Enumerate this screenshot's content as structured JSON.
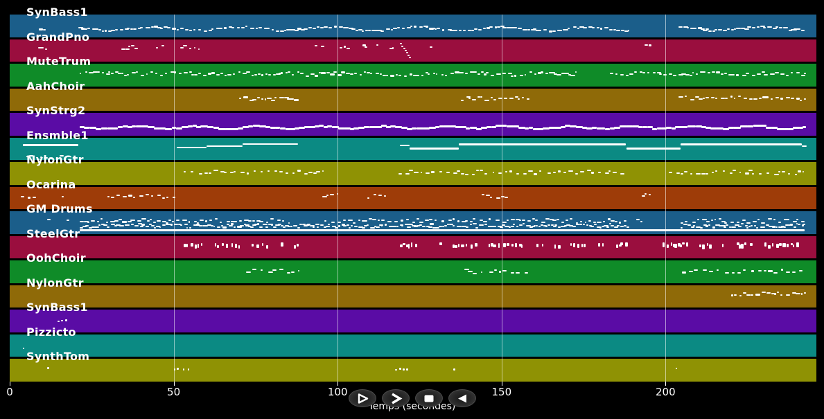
{
  "axis": {
    "title": "Temps (secondes)",
    "unit": "seconds",
    "range": [
      0,
      246
    ],
    "ticks": [
      {
        "value": 0,
        "label": "0"
      },
      {
        "value": 50,
        "label": "50"
      },
      {
        "value": 100,
        "label": "100"
      },
      {
        "value": 150,
        "label": "150"
      },
      {
        "value": 200,
        "label": "200"
      }
    ]
  },
  "controls": {
    "buttons": [
      {
        "name": "play",
        "label": "play",
        "glyph": "play-outline-triangle"
      },
      {
        "name": "fast-forward",
        "label": "fast-forward",
        "glyph": "chevron-right"
      },
      {
        "name": "stop",
        "label": "stop",
        "glyph": "filled-square"
      },
      {
        "name": "rewind",
        "label": "rewind",
        "glyph": "filled-left-triangle"
      }
    ]
  },
  "palette": {
    "background": "#000000",
    "note_color": "#ffffff",
    "gridline_color": "rgba(255,255,255,0.55)",
    "band_colors": [
      "#1b5e8a",
      "#9a0e3e",
      "#0f8b28",
      "#8f6a08",
      "#5a0ca5",
      "#0b8a83",
      "#8f9204",
      "#9e3c08"
    ]
  },
  "chart_data": {
    "type": "midi-piano-roll",
    "xlabel": "Temps (secondes)",
    "x_range": [
      0,
      246
    ],
    "gridlines": [
      50,
      100,
      150,
      200
    ],
    "tracks": [
      {
        "name": "SynBass1",
        "color": "#1b5e8a",
        "rows": [
          {
            "style": "wavy-dashes",
            "lane": 0.6,
            "gap": 5.5,
            "segments": [
              [
                8.8,
                10.5
              ],
              [
                21,
                188.5
              ],
              [
                204,
                242.5
              ]
            ]
          }
        ]
      },
      {
        "name": "GrandPno",
        "color": "#9a0e3e",
        "rows": [
          {
            "style": "dashes",
            "lane": 0.33,
            "gap": 6,
            "segments": [
              [
                8.7,
                11.4
              ],
              [
                34,
                39
              ],
              [
                44.5,
                47
              ],
              [
                52,
                58
              ],
              [
                93,
                96
              ],
              [
                100.5,
                103.3
              ],
              [
                107.5,
                108.7
              ],
              [
                111.8,
                112.4
              ],
              [
                115.8,
                117
              ],
              [
                128,
                128.6
              ],
              [
                193.5,
                195.3
              ]
            ]
          },
          {
            "style": "diag",
            "lane": 0.3,
            "gap": 3,
            "segments": [
              [
                119,
                121.8
              ]
            ]
          }
        ]
      },
      {
        "name": "MuteTrum",
        "color": "#0f8b28",
        "rows": [
          {
            "style": "dashes",
            "lane": 0.42,
            "gap": 6,
            "segments": [
              [
                21.3,
                172.5
              ],
              [
                183,
                242.5
              ]
            ]
          }
        ]
      },
      {
        "name": "AahChoir",
        "color": "#8f6a08",
        "rows": [
          {
            "style": "dashes",
            "lane": 0.42,
            "gap": 6,
            "segments": [
              [
                70,
                88
              ],
              [
                137.5,
                158
              ],
              [
                204,
                242.5
              ]
            ]
          }
        ]
      },
      {
        "name": "SynStrg2",
        "color": "#5a0ca5",
        "rows": [
          {
            "style": "wavy",
            "lane": 0.6,
            "gap": 5,
            "segments": [
              [
                21.3,
                242.5
              ]
            ]
          }
        ]
      },
      {
        "name": "Ensmble1",
        "color": "#0b8a83",
        "rows": [
          {
            "style": "line",
            "lane": 0.3,
            "gap": 0,
            "segments": [
              [
                4,
                21,
                0.3
              ],
              [
                51,
                60,
                0.4
              ],
              [
                60,
                71,
                0.34
              ],
              [
                71,
                88,
                0.26
              ],
              [
                119,
                122,
                0.32
              ],
              [
                122,
                137,
                0.46
              ],
              [
                137,
                188,
                0.27
              ],
              [
                188,
                204.5,
                0.46
              ],
              [
                204.5,
                241.5,
                0.27
              ],
              [
                241.5,
                243,
                0.35
              ]
            ]
          },
          {
            "style": "dashes",
            "lane": 0.85,
            "gap": 7,
            "segments": [
              [
                5,
                16
              ]
            ]
          }
        ]
      },
      {
        "name": "NylonGtr",
        "color": "#8f9204",
        "rows": [
          {
            "style": "dashes",
            "lane": 0.42,
            "gap": 8,
            "segments": [
              [
                53,
                95.3
              ],
              [
                118.6,
                187.3
              ],
              [
                201,
                242.5
              ]
            ]
          }
        ]
      },
      {
        "name": "Ocarina",
        "color": "#9e3c08",
        "rows": [
          {
            "style": "dashes",
            "lane": 0.38,
            "gap": 7,
            "segments": [
              [
                3.4,
                7.6
              ],
              [
                15.8,
                16.5
              ],
              [
                29.8,
                50
              ],
              [
                95.3,
                100.6
              ],
              [
                109,
                115.5
              ],
              [
                144,
                151.5
              ],
              [
                192.7,
                195
              ]
            ]
          }
        ]
      },
      {
        "name": "GM Drums",
        "color": "#1b5e8a",
        "rows": [
          {
            "style": "line",
            "lane": 0.8,
            "gap": 0,
            "segments": [
              [
                21.3,
                242.5
              ]
            ]
          },
          {
            "style": "dashes",
            "lane": 0.62,
            "gap": 4,
            "segments": [
              [
                21.3,
                188.5
              ],
              [
                204.5,
                242.5
              ]
            ]
          },
          {
            "style": "dashes",
            "lane": 0.4,
            "gap": 7,
            "segments": [
              [
                11.4,
                12.6
              ],
              [
                17.3,
                18
              ],
              [
                21.3,
                85
              ],
              [
                96,
                188.5
              ],
              [
                191,
                194
              ],
              [
                204.5,
                242.5
              ]
            ]
          }
        ]
      },
      {
        "name": "SteelGtr",
        "color": "#9a0e3e",
        "rows": [
          {
            "style": "bursts",
            "lane": 0.35,
            "gap": 6,
            "segments": [
              [
                53,
                59.5
              ],
              [
                62.5,
                88
              ],
              [
                119,
                125
              ],
              [
                131,
                188
              ],
              [
                199,
                242.5
              ]
            ]
          }
        ]
      },
      {
        "name": "OohChoir",
        "color": "#0f8b28",
        "rows": [
          {
            "style": "dashes",
            "lane": 0.45,
            "gap": 9,
            "segments": [
              [
                72,
                88
              ],
              [
                138.7,
                157.7
              ],
              [
                205,
                242.5
              ]
            ]
          }
        ]
      },
      {
        "name": "NylonGtr",
        "color": "#8f6a08",
        "rows": [
          {
            "style": "dashes",
            "lane": 0.38,
            "gap": 6,
            "segments": [
              [
                220,
                242.5
              ]
            ]
          }
        ]
      },
      {
        "name": "SynBass1",
        "color": "#5a0ca5",
        "rows": [
          {
            "style": "dots",
            "lane": 0.45,
            "gap": 5,
            "segments": [
              [
                14.6,
                17.5
              ]
            ]
          }
        ]
      },
      {
        "name": "Pizzicto",
        "color": "#0b8a83",
        "rows": [
          {
            "style": "dots",
            "lane": 0.6,
            "gap": 4,
            "segments": [
              [
                3.9,
                4.5
              ]
            ]
          }
        ]
      },
      {
        "name": "SynthTom",
        "color": "#8f9204",
        "rows": [
          {
            "style": "dots",
            "lane": 0.42,
            "gap": 6,
            "segments": [
              [
                11.4,
                12.8
              ],
              [
                50,
                54.7
              ],
              [
                117.6,
                121.8
              ],
              [
                135.3,
                136.3
              ],
              [
                203,
                203.6
              ]
            ]
          }
        ]
      }
    ]
  }
}
